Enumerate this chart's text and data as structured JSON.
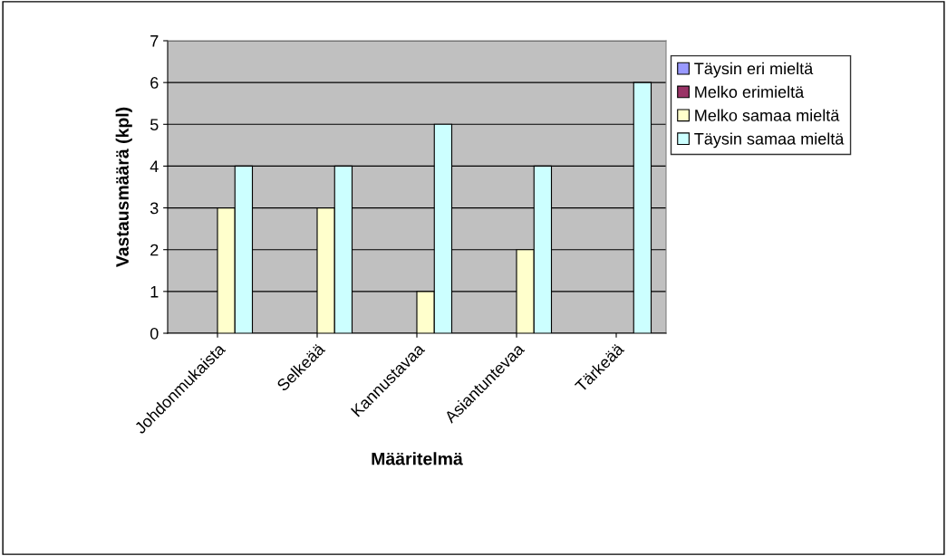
{
  "chart_data": {
    "type": "bar",
    "xlabel": "Määritelmä",
    "ylabel": "Vastausmäärä (kpl)",
    "categories": [
      "Johdonmukaista",
      "Selkeää",
      "Kannustavaa",
      "Asiantuntevaa",
      "Tärkeää"
    ],
    "series": [
      {
        "name": "Täysin eri mieltä",
        "color": "#9999ff",
        "values": [
          0,
          0,
          0,
          0,
          0
        ]
      },
      {
        "name": "Melko erimieltä",
        "color": "#993366",
        "values": [
          0,
          0,
          0,
          0,
          0
        ]
      },
      {
        "name": "Melko samaa mieltä",
        "color": "#ffffcc",
        "values": [
          3,
          3,
          1,
          2,
          0
        ]
      },
      {
        "name": "Täysin samaa mieltä",
        "color": "#ccffff",
        "values": [
          4,
          4,
          5,
          4,
          6
        ]
      }
    ],
    "ylim": [
      0,
      7
    ],
    "yticks": [
      0,
      1,
      2,
      3,
      4,
      5,
      6,
      7
    ],
    "grid": "y",
    "legend": "right"
  }
}
